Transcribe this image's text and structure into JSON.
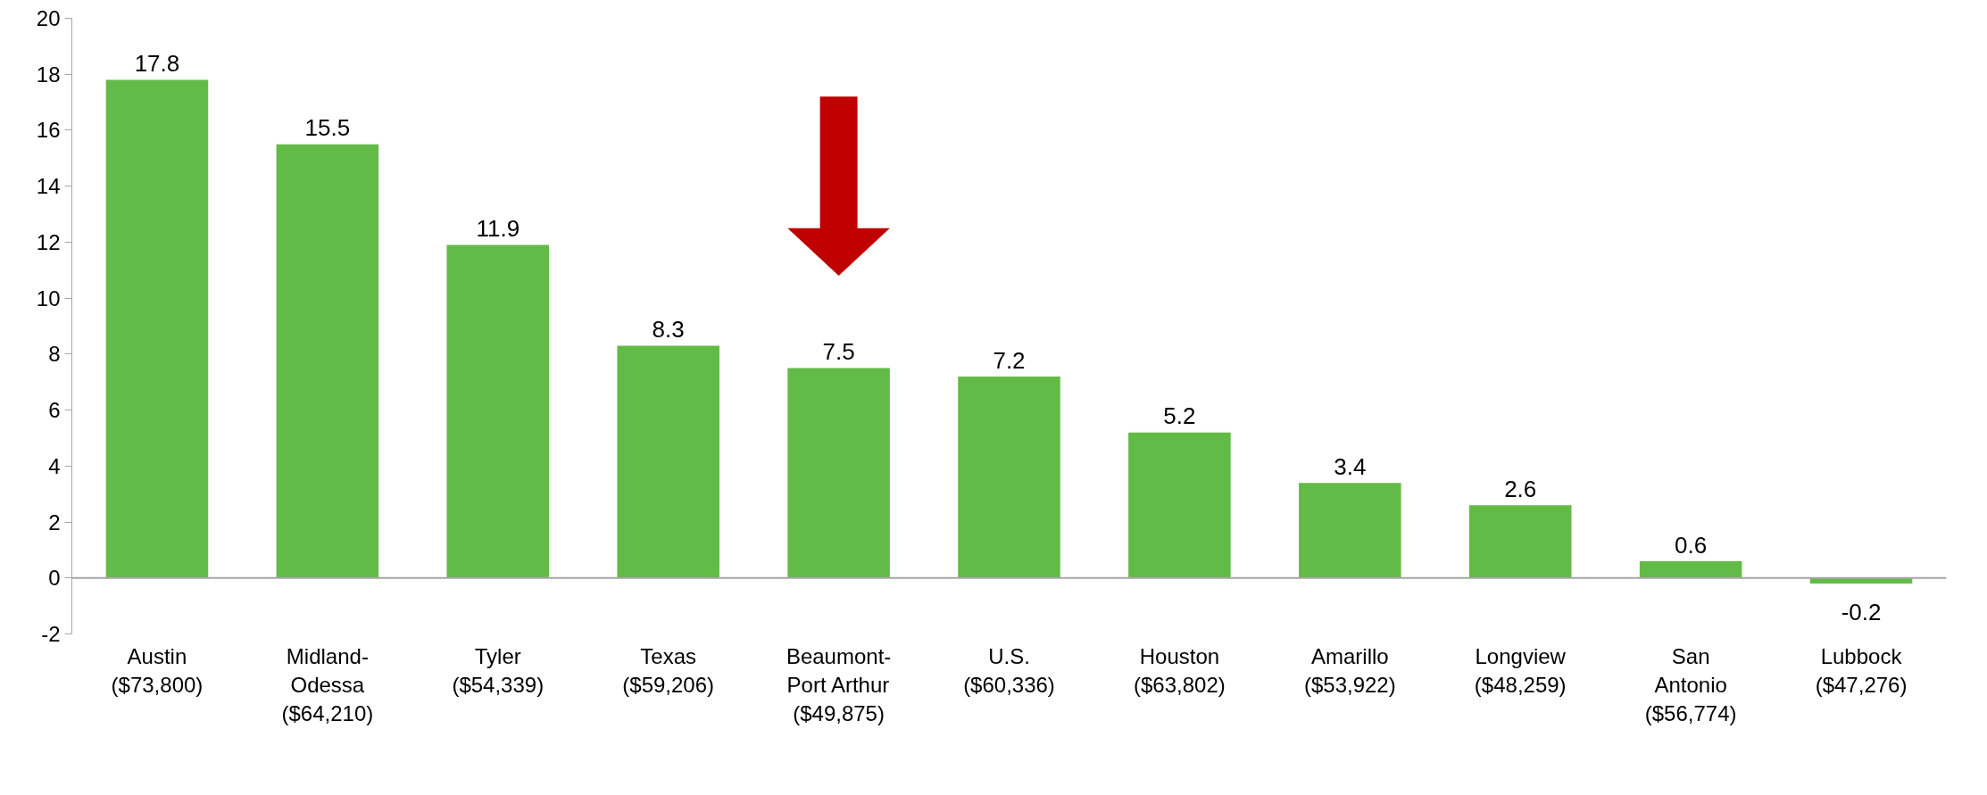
{
  "chart_data": {
    "type": "bar",
    "categories": [
      "Austin\n($73,800)",
      "Midland-\nOdessa\n($64,210)",
      "Tyler\n($54,339)",
      "Texas\n($59,206)",
      "Beaumont-\nPort Arthur\n($49,875)",
      "U.S.\n($60,336)",
      "Houston\n($63,802)",
      "Amarillo\n($53,922)",
      "Longview\n($48,259)",
      "San\nAntonio\n($56,774)",
      "Lubbock\n($47,276)"
    ],
    "values": [
      17.8,
      15.5,
      11.9,
      8.3,
      7.5,
      7.2,
      5.2,
      3.4,
      2.6,
      0.6,
      -0.2
    ],
    "color": "#62bb46",
    "data_labels": true,
    "ylim": [
      -2,
      20
    ],
    "yticks": [
      -2,
      0,
      2,
      4,
      6,
      8,
      10,
      12,
      14,
      16,
      18,
      20
    ]
  }
}
